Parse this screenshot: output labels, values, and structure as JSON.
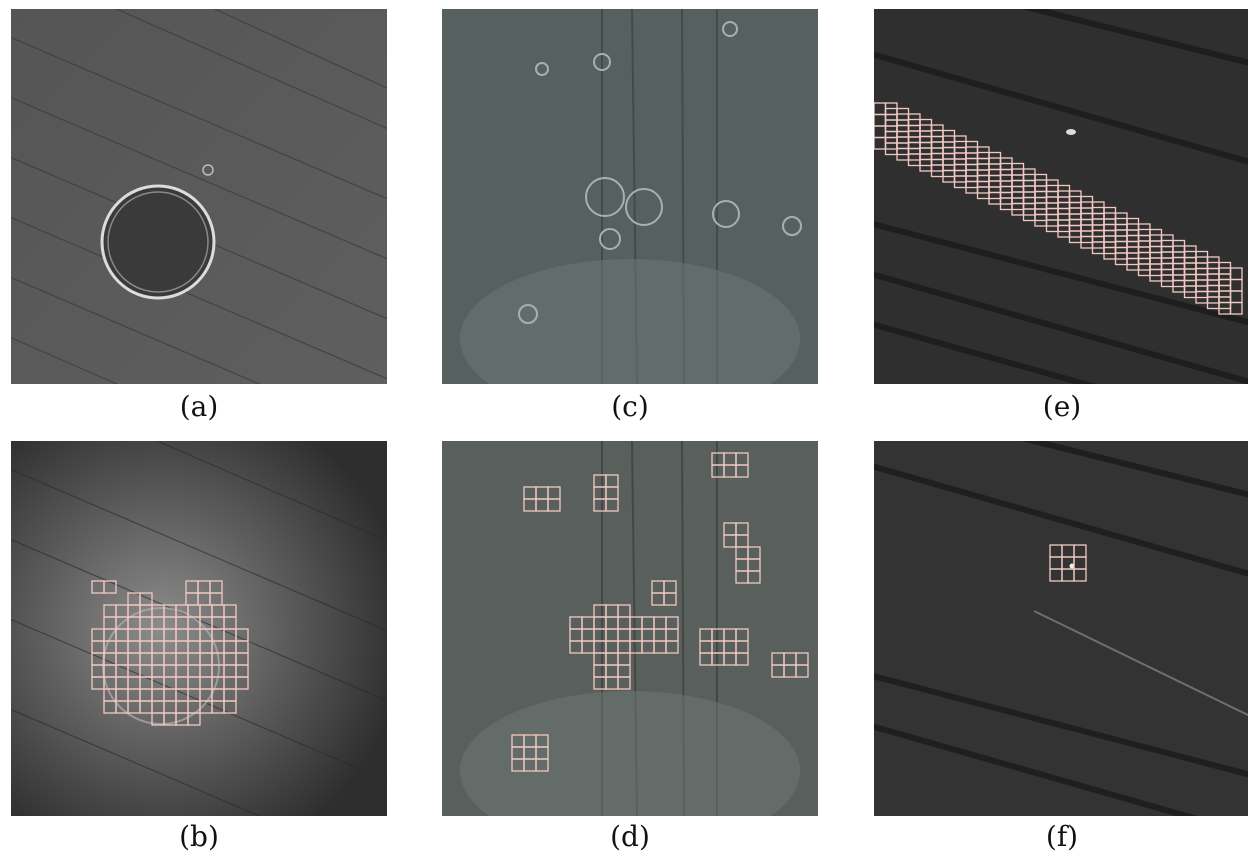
{
  "panels": [
    {
      "id": "a",
      "caption": "(a)"
    },
    {
      "id": "c",
      "caption": "(c)"
    },
    {
      "id": "e",
      "caption": "(e)"
    },
    {
      "id": "b",
      "caption": "(b)"
    },
    {
      "id": "d",
      "caption": "(d)"
    },
    {
      "id": "f",
      "caption": "(f)"
    }
  ],
  "colors": {
    "surface_dark": "#2e2e2e",
    "surface_gray": "#5a5a5a",
    "surface_teal": "#55605e",
    "grid_overlay": "#f2c9c2"
  }
}
